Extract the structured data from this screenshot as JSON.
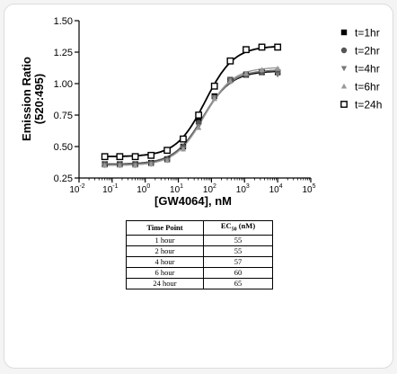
{
  "chart_data": {
    "type": "scatter",
    "xlabel": "[GW4064], nM",
    "ylabel_line1": "Emission Ratio",
    "ylabel_line2": "(520:495)",
    "x_scale": "log",
    "xlim": [
      0.01,
      100000
    ],
    "ylim": [
      0.25,
      1.5
    ],
    "x_ticks": [
      {
        "base": "10",
        "exp": "-2",
        "v": 0.01
      },
      {
        "base": "10",
        "exp": "-1",
        "v": 0.1
      },
      {
        "base": "10",
        "exp": "0",
        "v": 1
      },
      {
        "base": "10",
        "exp": "1",
        "v": 10
      },
      {
        "base": "10",
        "exp": "2",
        "v": 100
      },
      {
        "base": "10",
        "exp": "3",
        "v": 1000
      },
      {
        "base": "10",
        "exp": "4",
        "v": 10000
      },
      {
        "base": "10",
        "exp": "5",
        "v": 100000
      }
    ],
    "y_ticks": [
      "0.25",
      "0.50",
      "0.75",
      "1.00",
      "1.25",
      "1.50"
    ],
    "y_tick_values": [
      0.25,
      0.5,
      0.75,
      1.0,
      1.25,
      1.5
    ],
    "grid": false,
    "legend_position": "right",
    "x": [
      0.06,
      0.17,
      0.5,
      1.5,
      4.6,
      14,
      41,
      123,
      370,
      1111,
      3333,
      10000
    ],
    "series": [
      {
        "name": "t=1hr",
        "marker": "filled-square",
        "color": "#000000",
        "values": [
          0.36,
          0.36,
          0.36,
          0.37,
          0.4,
          0.5,
          0.7,
          0.9,
          1.03,
          1.07,
          1.09,
          1.09
        ],
        "fit": {
          "bottom": 0.36,
          "top": 1.1,
          "ec50": 55,
          "hill": 1.0
        }
      },
      {
        "name": "t=2hr",
        "marker": "filled-circle",
        "color": "#555555",
        "values": [
          0.36,
          0.36,
          0.36,
          0.37,
          0.4,
          0.5,
          0.69,
          0.89,
          1.02,
          1.07,
          1.09,
          1.1
        ],
        "fit": {
          "bottom": 0.36,
          "top": 1.11,
          "ec50": 55,
          "hill": 1.0
        }
      },
      {
        "name": "t=4hr",
        "marker": "down-triangle",
        "color": "#777777",
        "values": [
          0.35,
          0.35,
          0.35,
          0.36,
          0.39,
          0.48,
          0.66,
          0.89,
          1.03,
          1.08,
          1.1,
          1.07
        ],
        "fit": {
          "bottom": 0.35,
          "top": 1.11,
          "ec50": 57,
          "hill": 1.0
        }
      },
      {
        "name": "t=6hr",
        "marker": "up-triangle",
        "color": "#999999",
        "values": [
          0.35,
          0.35,
          0.35,
          0.36,
          0.39,
          0.48,
          0.65,
          0.88,
          1.02,
          1.08,
          1.11,
          1.12
        ],
        "fit": {
          "bottom": 0.35,
          "top": 1.13,
          "ec50": 60,
          "hill": 1.0
        }
      },
      {
        "name": "t=24h",
        "marker": "open-square",
        "color": "#000000",
        "values": [
          0.42,
          0.42,
          0.42,
          0.43,
          0.47,
          0.56,
          0.75,
          0.98,
          1.18,
          1.27,
          1.29,
          1.29
        ],
        "fit": {
          "bottom": 0.42,
          "top": 1.3,
          "ec50": 65,
          "hill": 1.0
        }
      }
    ]
  },
  "table": {
    "header_timepoint": "Time Point",
    "header_ec_main": "EC",
    "header_ec_sub": "50",
    "header_ec_unit": " (nM)",
    "rows": [
      {
        "time": "1 hour",
        "ec50": "55"
      },
      {
        "time": "2 hour",
        "ec50": "55"
      },
      {
        "time": "4 hour",
        "ec50": "57"
      },
      {
        "time": "6 hour",
        "ec50": "60"
      },
      {
        "time": "24 hour",
        "ec50": "65"
      }
    ]
  }
}
